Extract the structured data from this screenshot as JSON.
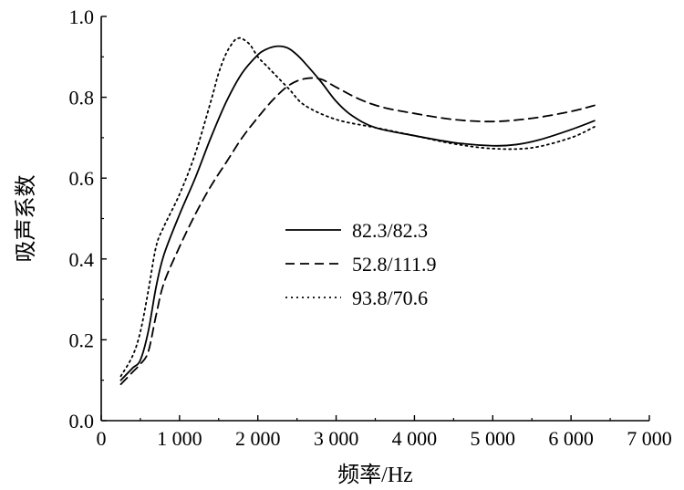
{
  "chart_data": {
    "type": "line",
    "xlabel": "频率/Hz",
    "ylabel": "吸声系数",
    "xlim": [
      0,
      7000
    ],
    "ylim": [
      0.0,
      1.0
    ],
    "x_ticks": [
      0,
      1000,
      2000,
      3000,
      4000,
      5000,
      6000,
      7000
    ],
    "x_tick_labels": [
      "0",
      "1 000",
      "2 000",
      "3 000",
      "4 000",
      "5 000",
      "6 000",
      "7 000"
    ],
    "y_ticks": [
      0.0,
      0.2,
      0.4,
      0.6,
      0.8,
      1.0
    ],
    "y_tick_labels": [
      "0.0",
      "0.2",
      "0.4",
      "0.6",
      "0.8",
      "1.0"
    ],
    "grid": false,
    "legend_position": "center",
    "series": [
      {
        "name": "82.3/82.3",
        "style": "solid",
        "x": [
          250,
          400,
          500,
          600,
          700,
          800,
          1000,
          1200,
          1400,
          1600,
          1800,
          2000,
          2100,
          2200,
          2300,
          2400,
          2500,
          2600,
          2800,
          3000,
          3200,
          3500,
          4000,
          4500,
          5000,
          5300,
          5600,
          6000,
          6300
        ],
        "y": [
          0.1,
          0.13,
          0.15,
          0.22,
          0.33,
          0.41,
          0.51,
          0.6,
          0.7,
          0.79,
          0.86,
          0.905,
          0.918,
          0.925,
          0.926,
          0.92,
          0.905,
          0.885,
          0.84,
          0.79,
          0.755,
          0.725,
          0.705,
          0.688,
          0.68,
          0.683,
          0.695,
          0.72,
          0.742
        ]
      },
      {
        "name": "52.8/111.9",
        "style": "dashed",
        "x": [
          250,
          400,
          500,
          600,
          700,
          800,
          1000,
          1200,
          1400,
          1600,
          1800,
          2000,
          2200,
          2400,
          2600,
          2800,
          3000,
          3300,
          3600,
          4000,
          4500,
          5000,
          5500,
          6000,
          6300
        ],
        "y": [
          0.09,
          0.12,
          0.14,
          0.17,
          0.26,
          0.34,
          0.43,
          0.51,
          0.58,
          0.64,
          0.7,
          0.75,
          0.795,
          0.83,
          0.846,
          0.845,
          0.825,
          0.795,
          0.775,
          0.76,
          0.745,
          0.74,
          0.748,
          0.765,
          0.78
        ]
      },
      {
        "name": "93.8/70.6",
        "style": "dotted",
        "x": [
          250,
          400,
          500,
          600,
          700,
          800,
          1000,
          1200,
          1400,
          1500,
          1600,
          1700,
          1750,
          1800,
          1900,
          2000,
          2100,
          2200,
          2400,
          2600,
          3000,
          3500,
          4000,
          4500,
          5000,
          5500,
          6000,
          6300
        ],
        "y": [
          0.11,
          0.16,
          0.22,
          0.32,
          0.43,
          0.48,
          0.56,
          0.66,
          0.79,
          0.86,
          0.91,
          0.94,
          0.946,
          0.945,
          0.93,
          0.9,
          0.88,
          0.86,
          0.82,
          0.78,
          0.745,
          0.725,
          0.705,
          0.685,
          0.673,
          0.675,
          0.7,
          0.727
        ]
      }
    ]
  }
}
